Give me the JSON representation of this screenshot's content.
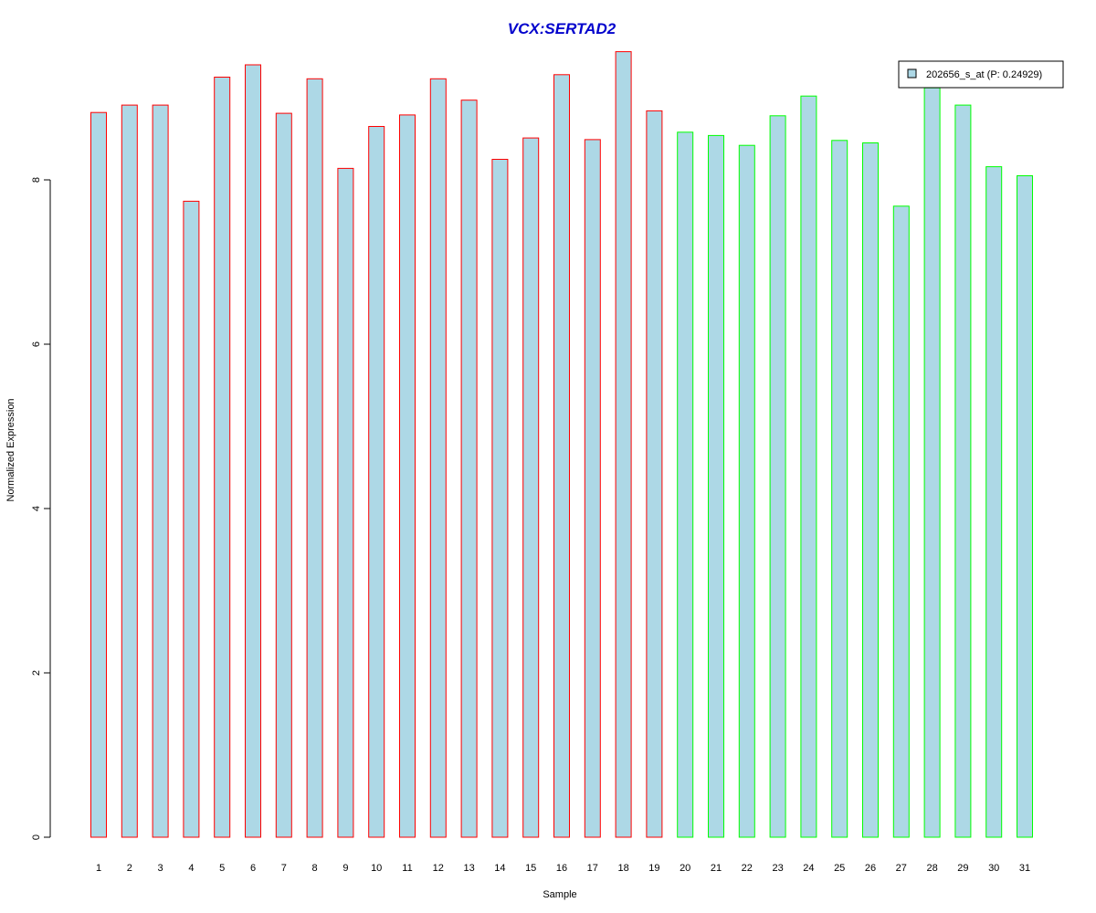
{
  "chart_data": {
    "type": "bar",
    "title": "VCX:SERTAD2",
    "xlabel": "Sample",
    "ylabel": "Normalized Expression",
    "categories": [
      "1",
      "2",
      "3",
      "4",
      "5",
      "6",
      "7",
      "8",
      "9",
      "10",
      "11",
      "12",
      "13",
      "14",
      "15",
      "16",
      "17",
      "18",
      "19",
      "20",
      "21",
      "22",
      "23",
      "24",
      "25",
      "26",
      "27",
      "28",
      "29",
      "30",
      "31"
    ],
    "series": [
      {
        "name": "202656_s_at (P: 0.24929)",
        "values": [
          8.82,
          8.91,
          8.91,
          7.74,
          9.25,
          9.4,
          8.81,
          9.23,
          8.14,
          8.65,
          8.79,
          9.23,
          8.97,
          8.25,
          8.51,
          9.28,
          8.49,
          9.56,
          8.84,
          8.58,
          8.54,
          8.42,
          8.78,
          9.02,
          8.48,
          8.45,
          7.68,
          9.12,
          8.91,
          8.16,
          8.05
        ]
      }
    ],
    "group_border_colors": [
      "#ff0000",
      "#ff0000",
      "#ff0000",
      "#ff0000",
      "#ff0000",
      "#ff0000",
      "#ff0000",
      "#ff0000",
      "#ff0000",
      "#ff0000",
      "#ff0000",
      "#ff0000",
      "#ff0000",
      "#ff0000",
      "#ff0000",
      "#ff0000",
      "#ff0000",
      "#ff0000",
      "#ff0000",
      "#00ff00",
      "#00ff00",
      "#00ff00",
      "#00ff00",
      "#00ff00",
      "#00ff00",
      "#00ff00",
      "#00ff00",
      "#00ff00",
      "#00ff00",
      "#00ff00",
      "#00ff00"
    ],
    "bar_fill": "#add8e6",
    "title_color": "#0000cc",
    "y_ticks": [
      "0",
      "2",
      "4",
      "6",
      "8"
    ],
    "ylim": [
      0,
      9.6
    ],
    "grid": false,
    "legend_position": "top-right"
  }
}
